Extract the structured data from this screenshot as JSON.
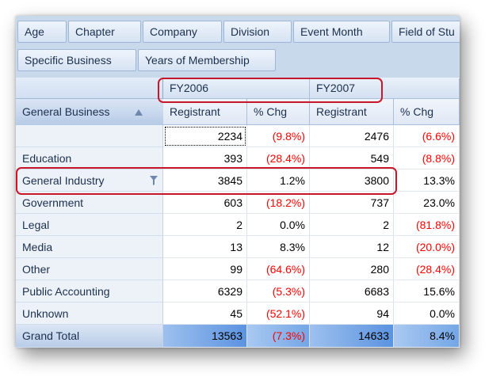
{
  "filter_chips": [
    {
      "label": "Age"
    },
    {
      "label": "Chapter"
    },
    {
      "label": "Company"
    },
    {
      "label": "Division"
    },
    {
      "label": "Event Month"
    },
    {
      "label": "Field of Stu"
    },
    {
      "label": "Specific Business"
    },
    {
      "label": "Years of Membership"
    }
  ],
  "row_field": {
    "label": "General Business"
  },
  "years": [
    {
      "label": "FY2006",
      "registrant_label": "Registrant",
      "pct_label": "% Chg"
    },
    {
      "label": "FY2007",
      "registrant_label": "Registrant",
      "pct_label": "% Chg"
    }
  ],
  "rows": [
    {
      "label": "",
      "fy2006_reg": "2234",
      "fy2006_pct": "(9.8%)",
      "fy2007_reg": "2476",
      "fy2007_pct": "(6.6%)"
    },
    {
      "label": "Education",
      "fy2006_reg": "393",
      "fy2006_pct": "(28.4%)",
      "fy2007_reg": "549",
      "fy2007_pct": "(8.8%)"
    },
    {
      "label": "General Industry",
      "fy2006_reg": "3845",
      "fy2006_pct": "1.2%",
      "fy2007_reg": "3800",
      "fy2007_pct": "13.3%"
    },
    {
      "label": "Government",
      "fy2006_reg": "603",
      "fy2006_pct": "(18.2%)",
      "fy2007_reg": "737",
      "fy2007_pct": "23.0%"
    },
    {
      "label": "Legal",
      "fy2006_reg": "2",
      "fy2006_pct": "0.0%",
      "fy2007_reg": "2",
      "fy2007_pct": "(81.8%)"
    },
    {
      "label": "Media",
      "fy2006_reg": "13",
      "fy2006_pct": "8.3%",
      "fy2007_reg": "12",
      "fy2007_pct": "(20.0%)"
    },
    {
      "label": "Other",
      "fy2006_reg": "99",
      "fy2006_pct": "(64.6%)",
      "fy2007_reg": "280",
      "fy2007_pct": "(28.4%)"
    },
    {
      "label": "Public Accounting",
      "fy2006_reg": "6329",
      "fy2006_pct": "(5.3%)",
      "fy2007_reg": "6683",
      "fy2007_pct": "15.6%"
    },
    {
      "label": "Unknown",
      "fy2006_reg": "45",
      "fy2006_pct": "(52.1%)",
      "fy2007_reg": "94",
      "fy2007_pct": "0.0%"
    }
  ],
  "grand_total": {
    "label": "Grand Total",
    "fy2006_reg": "13563",
    "fy2006_pct": "(7.3%)",
    "fy2007_reg": "14633",
    "fy2007_pct": "8.4%"
  },
  "colors": {
    "negative": "#ff0000",
    "highlight": "#c8162a",
    "header_blue": "#c9d9ec"
  },
  "icons": {
    "sort": "sort-ascending-icon",
    "filter": "filter-funnel-icon"
  }
}
